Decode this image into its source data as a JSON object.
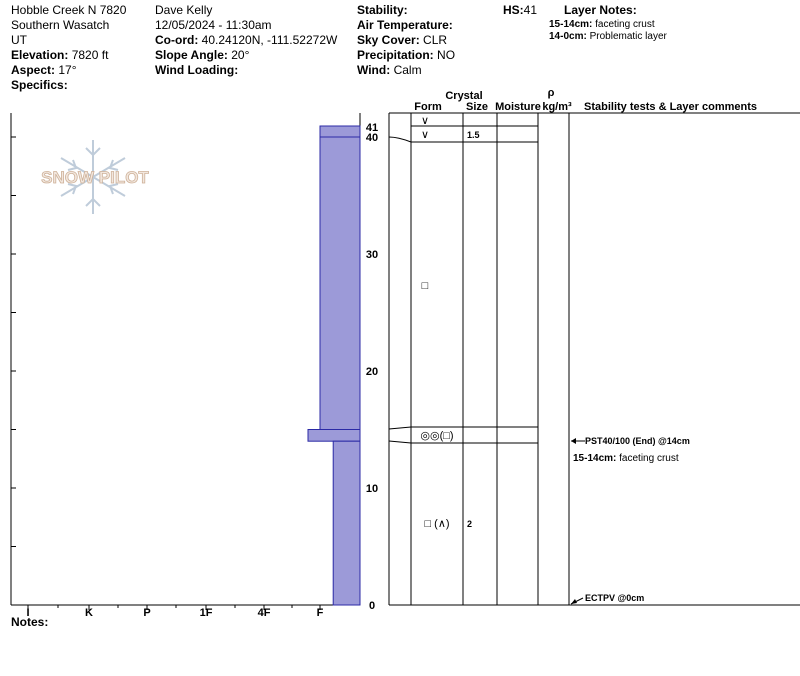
{
  "header": {
    "location": "Hobble Creek N 7820",
    "range": "Southern Wasatch",
    "state": "UT",
    "elevation_label": "Elevation:",
    "elevation_value": "7820 ft",
    "aspect_label": "Aspect:",
    "aspect_value": "17°",
    "specifics_label": "Specifics:",
    "observer": "Dave Kelly",
    "datetime": "12/05/2024 - 11:30am",
    "coord_label": "Co-ord:",
    "coord_value": "40.24120N, -111.52272W",
    "slope_label": "Slope Angle:",
    "slope_value": "20°",
    "wind_loading_label": "Wind Loading:",
    "stability_label": "Stability:",
    "air_temp_label": "Air Temperature:",
    "sky_label": "Sky Cover:",
    "sky_value": "CLR",
    "precip_label": "Precipitation:",
    "precip_value": "NO",
    "wind_label": "Wind:",
    "wind_value": "Calm",
    "hs_label": "HS:",
    "hs_value": "41",
    "layer_notes_label": "Layer Notes:",
    "layer_notes": [
      {
        "range": "15-14cm:",
        "text": "faceting crust"
      },
      {
        "range": "14-0cm:",
        "text": "Problematic layer"
      }
    ]
  },
  "watermark": "SNOW PILOT",
  "columns": {
    "crystal": "Crystal",
    "form": "Form",
    "size": "Size",
    "moisture": "Moisture",
    "rho": "ρ",
    "density_unit": "kg/m³",
    "stability": "Stability tests & Layer comments"
  },
  "chart_data": {
    "type": "snow_profile",
    "hardness_scale": [
      "I",
      "K",
      "P",
      "1F",
      "4F",
      "F"
    ],
    "depth_ticks": [
      0,
      10,
      20,
      30,
      40,
      41
    ],
    "hs_cm": 41,
    "layers": [
      {
        "top": 41,
        "bottom": 40,
        "hardness": 1.0,
        "form": "∨",
        "size": ""
      },
      {
        "top": 40,
        "bottom": 15,
        "hardness": 1.0,
        "form": "□",
        "size": "1.5"
      },
      {
        "top": 15,
        "bottom": 14,
        "hardness": 1.3,
        "form": "◎◎(□)",
        "size": ""
      },
      {
        "top": 14,
        "bottom": 0,
        "hardness": 0.67,
        "form": "□ (∧)",
        "size": "2"
      }
    ],
    "tests": [
      {
        "depth": 14,
        "text": "PST40/100 (End) @14cm"
      },
      {
        "depth": 0,
        "text": "ECTPV @0cm"
      }
    ],
    "layer_comment": {
      "depth": 13,
      "text": "15-14cm: faceting crust"
    }
  },
  "notes_label": "Notes:"
}
